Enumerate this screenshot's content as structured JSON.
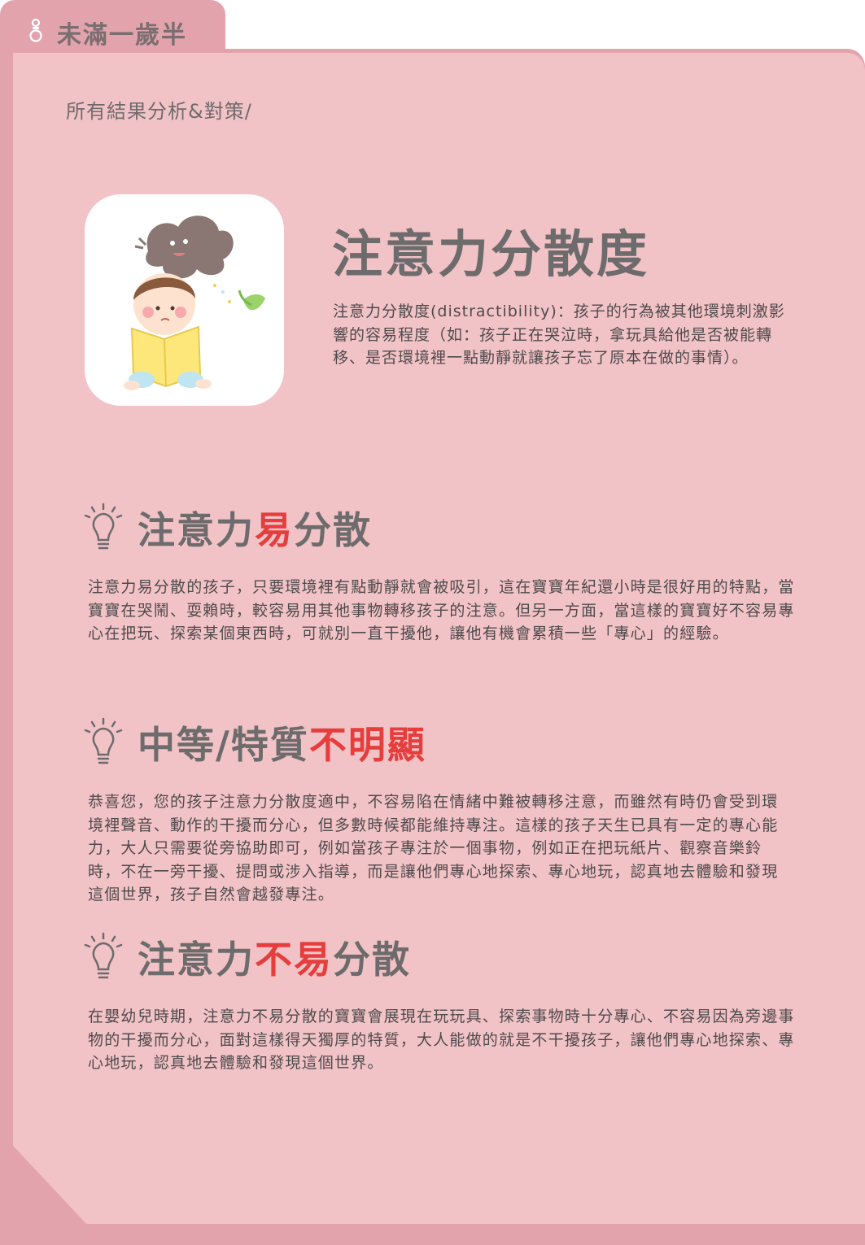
{
  "tab": {
    "label": "未滿一歲半",
    "icon": "pacifier-icon"
  },
  "breadcrumb": "所有結果分析&對策/",
  "illustration": {
    "icon": "distracted-baby-illustration"
  },
  "main": {
    "title": "注意力分散度",
    "description": "注意力分散度(distractibility)：孩子的行為被其他環境刺激影響的容易程度（如：孩子正在哭泣時，拿玩具給他是否被能轉移、是否環境裡一點動靜就讓孩子忘了原本在做的事情）。"
  },
  "sections": [
    {
      "title_parts": [
        "注意力",
        "易",
        "分散"
      ],
      "body": "注意力易分散的孩子，只要環境裡有點動靜就會被吸引，這在寶寶年紀還小時是很好用的特點，當寶寶在哭鬧、耍賴時，較容易用其他事物轉移孩子的注意。但另一方面，當這樣的寶寶好不容易專心在把玩、探索某個東西時，可就別一直干擾他，讓他有機會累積一些「專心」的經驗。"
    },
    {
      "title_parts": [
        "中等/特質",
        "不明顯",
        ""
      ],
      "body": "恭喜您，您的孩子注意力分散度適中，不容易陷在情緒中難被轉移注意，而雖然有時仍會受到環境裡聲音、動作的干擾而分心，但多數時候都能維持專注。這樣的孩子天生已具有一定的專心能力，大人只需要從旁協助即可，例如當孩子專注於一個事物，例如正在把玩紙片、觀察音樂鈴時，不在一旁干擾、提問或涉入指導，而是讓他們專心地探索、專心地玩，認真地去體驗和發現這個世界，孩子自然會越發專注。"
    },
    {
      "title_parts": [
        "注意力",
        "不易",
        "分散"
      ],
      "body": "在嬰幼兒時期，注意力不易分散的寶寶會展現在玩玩具、探索事物時十分專心、不容易因為旁邊事物的干擾而分心，面對這樣得天獨厚的特質，大人能做的就是不干擾孩子，讓他們專心地探索、專心地玩，認真地去體驗和發現這個世界。"
    }
  ],
  "colors": {
    "highlight": "#e63d3d",
    "card": "#f1c3c7",
    "folder": "#e3a3ad"
  }
}
